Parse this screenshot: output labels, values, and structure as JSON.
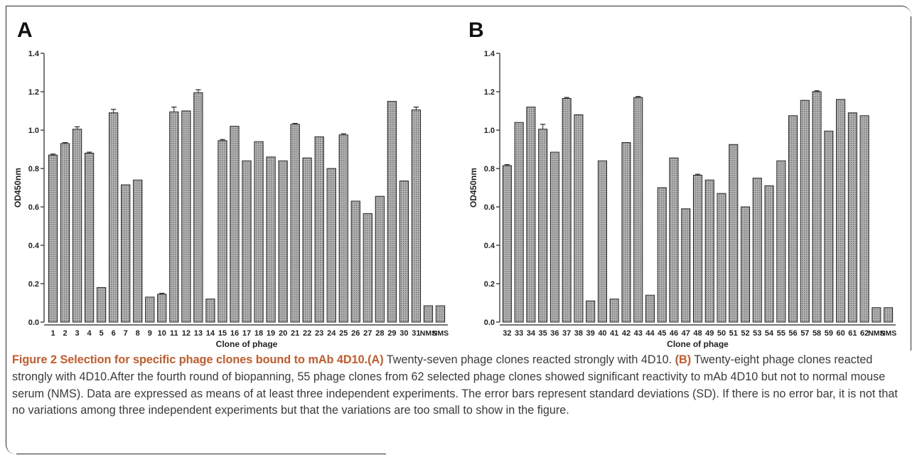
{
  "chart_data": [
    {
      "type": "bar",
      "panel_label": "A",
      "ylabel": "OD450nm",
      "xlabel": "Clone of phage",
      "ylim": [
        0,
        1.4
      ],
      "yticks": [
        "0.0",
        "0.2",
        "0.4",
        "0.6",
        "0.8",
        "1.0",
        "1.2",
        "1.4"
      ],
      "categories": [
        "1",
        "2",
        "3",
        "4",
        "5",
        "6",
        "7",
        "8",
        "9",
        "10",
        "11",
        "12",
        "13",
        "14",
        "15",
        "16",
        "17",
        "18",
        "19",
        "20",
        "21",
        "22",
        "23",
        "24",
        "25",
        "26",
        "27",
        "28",
        "29",
        "30",
        "31",
        "NMS",
        "NMS"
      ],
      "values": [
        0.87,
        0.93,
        1.005,
        0.88,
        0.18,
        1.09,
        0.715,
        0.74,
        0.13,
        0.145,
        1.095,
        1.1,
        1.195,
        0.12,
        0.945,
        1.02,
        0.84,
        0.94,
        0.86,
        0.84,
        1.03,
        0.855,
        0.965,
        0.8,
        0.975,
        0.63,
        0.565,
        0.655,
        1.15,
        0.735,
        1.105,
        0.085,
        0.085
      ],
      "errors": [
        0.005,
        0.005,
        0.012,
        0.005,
        0.003,
        0.018,
        0.004,
        0.004,
        0.003,
        0.005,
        0.025,
        0.004,
        0.015,
        0.003,
        0.006,
        0.004,
        0.003,
        0.004,
        0.003,
        0.003,
        0.005,
        0.004,
        0.004,
        0.003,
        0.006,
        0.004,
        0.004,
        0.003,
        0.004,
        0.003,
        0.015,
        0.002,
        0.002
      ]
    },
    {
      "type": "bar",
      "panel_label": "B",
      "ylabel": "OD450nm",
      "xlabel": "Clone of phage",
      "ylim": [
        0,
        1.4
      ],
      "yticks": [
        "0.0",
        "0.2",
        "0.4",
        "0.6",
        "0.8",
        "1.0",
        "1.2",
        "1.4"
      ],
      "categories": [
        "32",
        "33",
        "34",
        "35",
        "36",
        "37",
        "38",
        "39",
        "40",
        "41",
        "42",
        "43",
        "44",
        "45",
        "46",
        "47",
        "48",
        "49",
        "50",
        "51",
        "52",
        "53",
        "54",
        "55",
        "56",
        "57",
        "58",
        "59",
        "60",
        "61",
        "62",
        "NMS",
        "NMS"
      ],
      "values": [
        0.815,
        1.04,
        1.12,
        1.005,
        0.885,
        1.165,
        1.08,
        0.11,
        0.84,
        0.12,
        0.935,
        1.17,
        0.14,
        0.7,
        0.855,
        0.59,
        0.765,
        0.74,
        0.67,
        0.925,
        0.6,
        0.75,
        0.71,
        0.84,
        1.075,
        1.155,
        1.2,
        0.995,
        1.16,
        1.09,
        1.075,
        0.075,
        0.075
      ],
      "errors": [
        0.005,
        0.004,
        0.004,
        0.025,
        0.004,
        0.005,
        0.004,
        0.003,
        0.004,
        0.003,
        0.004,
        0.005,
        0.003,
        0.004,
        0.004,
        0.003,
        0.005,
        0.004,
        0.004,
        0.004,
        0.003,
        0.004,
        0.003,
        0.004,
        0.004,
        0.004,
        0.005,
        0.004,
        0.004,
        0.004,
        0.004,
        0.002,
        0.002
      ]
    }
  ],
  "caption": {
    "title": "Figure 2 Selection for specific phage clones bound to mAb 4D10.",
    "label_a": "(A)",
    "text_a": " Twenty-seven phage clones reacted strongly with 4D10. ",
    "label_b": "(B)",
    "text_b": " Twenty-eight phage clones reacted strongly with 4D10.After the fourth round of biopanning, 55 phage clones from 62 selected phage clones showed significant reactivity to mAb 4D10 but not to normal mouse serum (NMS). Data are expressed as means of at least three independent experiments. The error bars represent standard deviations (SD). If there is no error bar, it is not that no variations among three independent experiments but that the variations are too small to show in the figure."
  },
  "colors": {
    "bar_fill": "#9c9c9c",
    "bar_stroke": "#222222",
    "caption_accent": "#c65a2b"
  }
}
